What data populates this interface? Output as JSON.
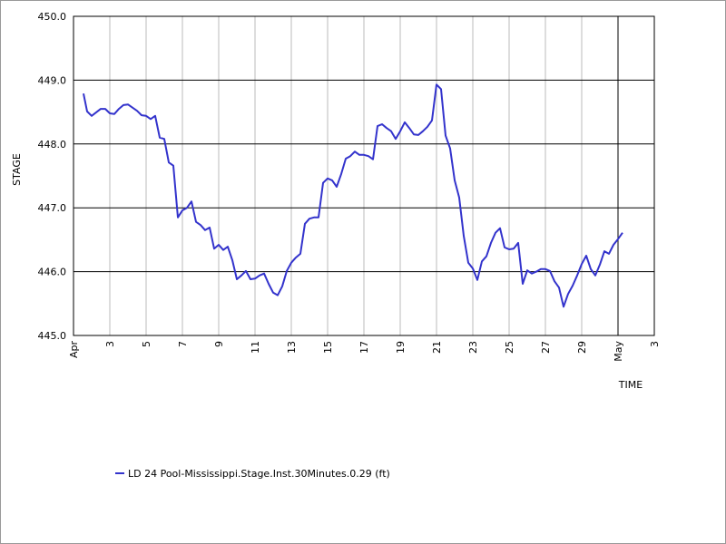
{
  "chart_data": {
    "type": "line",
    "xlabel": "TIME",
    "ylabel": "STAGE",
    "xlim": [
      1,
      33
    ],
    "ylim": [
      445,
      450
    ],
    "xticks": [
      {
        "value": 1,
        "label": "Apr"
      },
      3,
      5,
      7,
      9,
      11,
      13,
      15,
      17,
      19,
      21,
      23,
      25,
      27,
      29,
      {
        "value": 31,
        "label": "May"
      },
      {
        "value": 33,
        "label": "3"
      }
    ],
    "yticks": [
      {
        "value": 445,
        "label": "445.0"
      },
      {
        "value": 446,
        "label": "446.0"
      },
      {
        "value": 447,
        "label": "447.0"
      },
      {
        "value": 448,
        "label": "448.0"
      },
      {
        "value": 449,
        "label": "449.0"
      },
      {
        "value": 450,
        "label": "450.0"
      }
    ],
    "grid": true,
    "legend": "bottom-left",
    "series": [
      {
        "name": "LD 24 Pool-Mississippi.Stage.Inst.30Minutes.0.29 (ft)",
        "color": "#3333cc",
        "x": [
          1.55,
          1.75,
          2.0,
          2.5,
          2.75,
          3.0,
          3.25,
          3.5,
          3.75,
          4.0,
          4.25,
          4.5,
          4.75,
          5.0,
          5.25,
          5.5,
          5.75,
          6.0,
          6.25,
          6.5,
          6.75,
          7.0,
          7.25,
          7.5,
          7.75,
          8.0,
          8.25,
          8.5,
          8.75,
          9.0,
          9.25,
          9.5,
          9.75,
          10.0,
          10.25,
          10.5,
          10.75,
          11.0,
          11.25,
          11.5,
          11.75,
          12.0,
          12.25,
          12.5,
          12.75,
          13.0,
          13.25,
          13.5,
          13.75,
          14.0,
          14.25,
          14.5,
          14.75,
          15.0,
          15.25,
          15.5,
          15.75,
          16.0,
          16.25,
          16.5,
          16.75,
          17.0,
          17.25,
          17.5,
          17.75,
          18.0,
          18.25,
          18.5,
          18.75,
          19.0,
          19.25,
          19.5,
          19.75,
          20.0,
          20.25,
          20.5,
          20.75,
          21.0,
          21.25,
          21.5,
          21.75,
          22.0,
          22.25,
          22.5,
          22.75,
          23.0,
          23.25,
          23.5,
          23.75,
          24.0,
          24.25,
          24.5,
          24.75,
          25.0,
          25.25,
          25.5,
          25.75,
          26.0,
          26.25,
          26.5,
          26.75,
          27.0,
          27.25,
          27.5,
          27.75,
          28.0,
          28.25,
          28.5,
          28.75,
          29.0,
          29.25,
          29.5,
          29.75,
          30.0,
          30.25,
          30.5,
          30.75,
          31.0,
          31.25
        ],
        "values": [
          448.79,
          448.51,
          448.44,
          448.55,
          448.55,
          448.48,
          448.47,
          448.55,
          448.61,
          448.62,
          448.57,
          448.52,
          448.45,
          448.44,
          448.39,
          448.44,
          448.1,
          448.08,
          447.71,
          447.66,
          446.85,
          446.96,
          447.0,
          447.1,
          446.78,
          446.73,
          446.65,
          446.69,
          446.36,
          446.42,
          446.34,
          446.39,
          446.18,
          445.88,
          445.94,
          446.01,
          445.88,
          445.89,
          445.94,
          445.97,
          445.81,
          445.67,
          445.63,
          445.77,
          446.01,
          446.14,
          446.22,
          446.28,
          446.75,
          446.83,
          446.85,
          446.85,
          447.39,
          447.46,
          447.43,
          447.33,
          447.53,
          447.77,
          447.81,
          447.88,
          447.83,
          447.83,
          447.81,
          447.76,
          448.28,
          448.31,
          448.25,
          448.2,
          448.08,
          448.2,
          448.34,
          448.25,
          448.15,
          448.14,
          448.2,
          448.27,
          448.37,
          448.93,
          448.86,
          448.13,
          447.93,
          447.43,
          447.16,
          446.56,
          446.14,
          446.05,
          445.87,
          446.16,
          446.24,
          446.45,
          446.61,
          446.68,
          446.38,
          446.35,
          446.36,
          446.45,
          445.81,
          446.02,
          445.97,
          446.0,
          446.04,
          446.04,
          446.01,
          445.85,
          445.75,
          445.45,
          445.65,
          445.78,
          445.94,
          446.12,
          446.25,
          446.04,
          445.94,
          446.11,
          446.32,
          446.28,
          446.42,
          446.51,
          446.61
        ]
      }
    ]
  }
}
